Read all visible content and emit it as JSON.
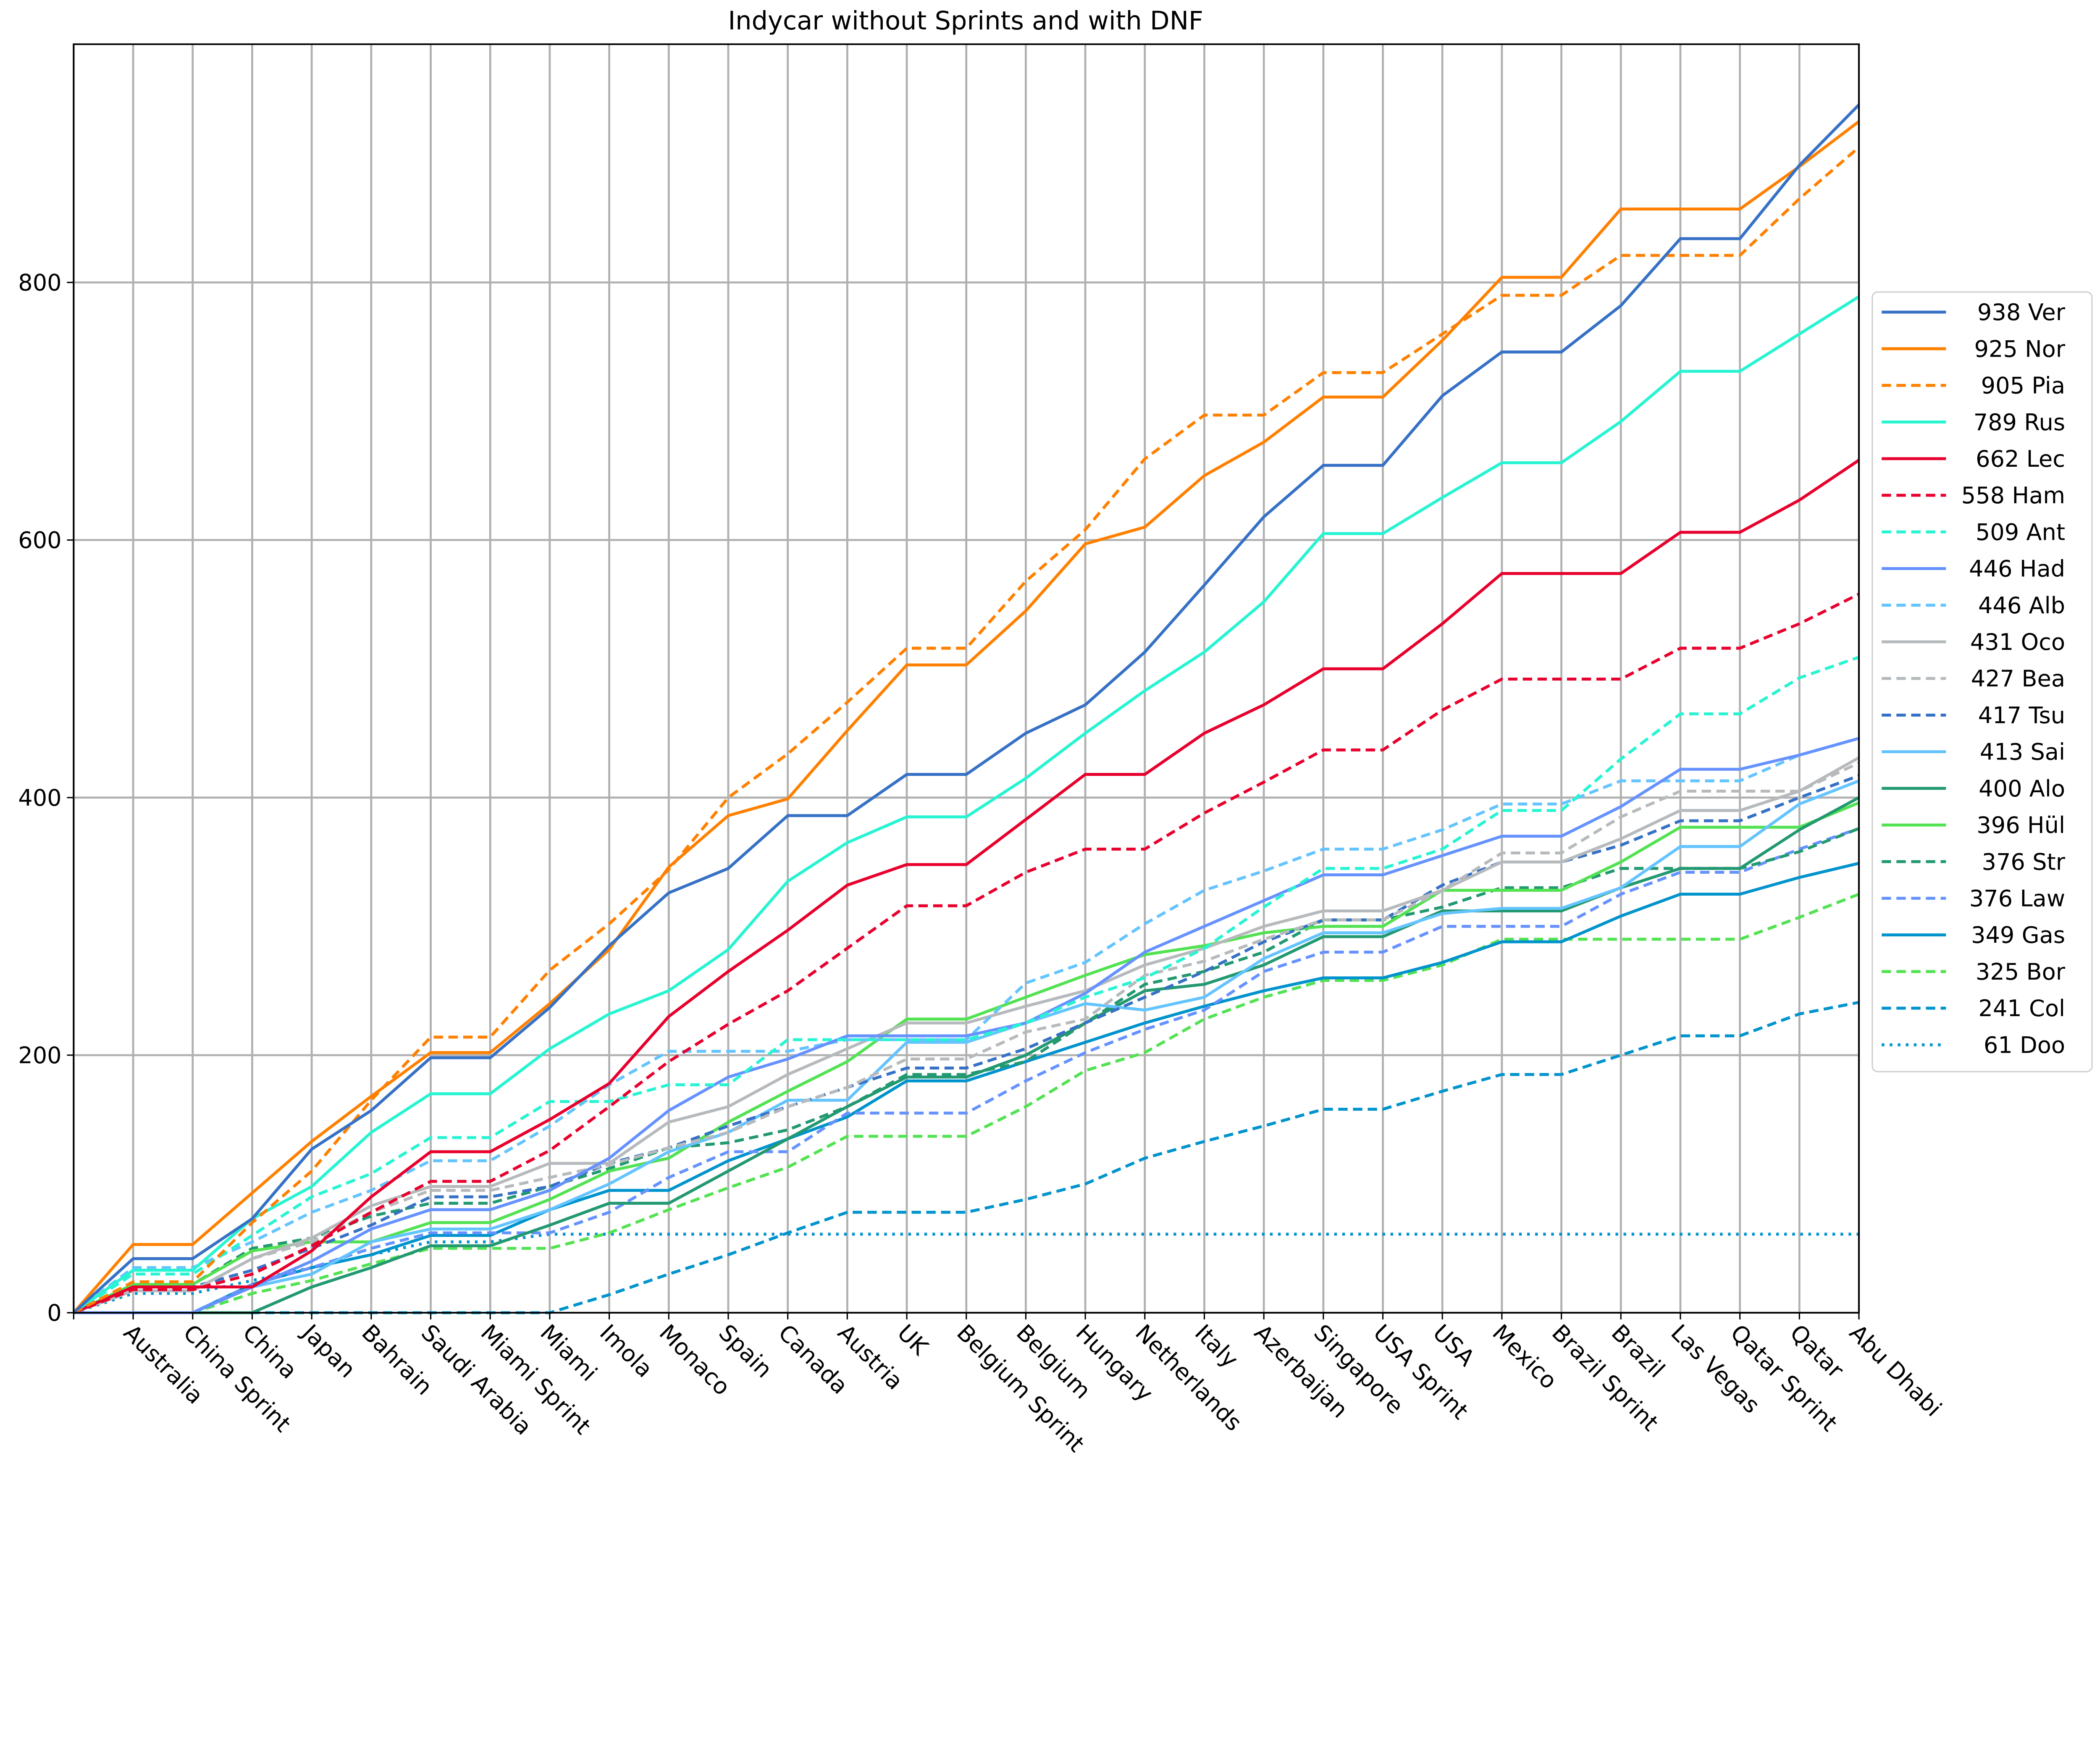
{
  "chart_data": {
    "type": "line",
    "title": "Indycar without Sprints and with DNF",
    "xlabel": "",
    "ylabel": "",
    "ylim": [
      0,
      985
    ],
    "xlim": [
      0,
      30
    ],
    "grid": true,
    "legend_position": "right",
    "yticks": [
      0,
      200,
      400,
      600,
      800
    ],
    "categories": [
      "",
      "Australia",
      "China Sprint",
      "China",
      "Japan",
      "Bahrain",
      "Saudi Arabia",
      "Miami Sprint",
      "Miami",
      "Imola",
      "Monaco",
      "Spain",
      "Canada",
      "Austria",
      "UK",
      "Belgium Sprint",
      "Belgium",
      "Hungary",
      "Netherlands",
      "Italy",
      "Azerbaijan",
      "Singapore",
      "USA Sprint",
      "USA",
      "Mexico",
      "Brazil Sprint",
      "Brazil",
      "Las Vegas",
      "Qatar Sprint",
      "Qatar",
      "Abu Dhabi"
    ],
    "series": [
      {
        "name": "Ver",
        "total": "938",
        "color": "#3671c6",
        "style": "solid",
        "values": [
          0,
          42,
          42,
          73,
          127,
          157,
          198,
          198,
          237,
          285,
          326,
          345,
          386,
          386,
          418,
          418,
          450,
          472,
          513,
          565,
          618,
          658,
          658,
          712,
          746,
          746,
          782,
          834,
          834,
          891,
          938
        ]
      },
      {
        "name": "Nor",
        "total": "925",
        "color": "#ff8000",
        "style": "solid",
        "values": [
          0,
          53,
          53,
          93,
          133,
          168,
          202,
          202,
          240,
          282,
          346,
          386,
          399,
          452,
          503,
          503,
          545,
          597,
          610,
          650,
          676,
          711,
          711,
          755,
          804,
          804,
          857,
          857,
          857,
          890,
          925
        ]
      },
      {
        "name": "Pia",
        "total": "905",
        "color": "#ff8000",
        "style": "dashed",
        "values": [
          0,
          24,
          24,
          70,
          110,
          165,
          214,
          214,
          266,
          302,
          344,
          400,
          434,
          474,
          516,
          516,
          568,
          608,
          663,
          697,
          697,
          730,
          730,
          760,
          790,
          790,
          821,
          821,
          821,
          865,
          905
        ]
      },
      {
        "name": "Rus",
        "total": "789",
        "color": "#27f4d2",
        "style": "solid",
        "values": [
          0,
          33,
          33,
          73,
          98,
          140,
          170,
          170,
          205,
          232,
          250,
          282,
          335,
          365,
          385,
          385,
          415,
          450,
          483,
          513,
          552,
          605,
          605,
          633,
          660,
          660,
          692,
          731,
          731,
          760,
          789
        ]
      },
      {
        "name": "Lec",
        "total": "662",
        "color": "#e8002d",
        "style": "solid",
        "values": [
          0,
          20,
          20,
          20,
          48,
          90,
          125,
          125,
          150,
          178,
          230,
          265,
          297,
          332,
          348,
          348,
          383,
          418,
          418,
          450,
          472,
          500,
          500,
          535,
          574,
          574,
          574,
          606,
          606,
          631,
          662
        ]
      },
      {
        "name": "Ham",
        "total": "558",
        "color": "#e8002d",
        "style": "dashed",
        "values": [
          0,
          18,
          18,
          30,
          52,
          78,
          102,
          102,
          126,
          160,
          195,
          224,
          250,
          283,
          316,
          316,
          342,
          360,
          360,
          388,
          412,
          437,
          437,
          468,
          492,
          492,
          492,
          516,
          516,
          535,
          558
        ]
      },
      {
        "name": "Ant",
        "total": "509",
        "color": "#27f4d2",
        "style": "dashed",
        "values": [
          0,
          30,
          30,
          60,
          90,
          108,
          136,
          136,
          164,
          164,
          177,
          177,
          212,
          212,
          212,
          212,
          225,
          245,
          260,
          283,
          315,
          345,
          345,
          360,
          390,
          390,
          430,
          465,
          465,
          493,
          509
        ]
      },
      {
        "name": "Had",
        "total": "446",
        "color": "#6692ff",
        "style": "solid",
        "values": [
          0,
          0,
          0,
          20,
          40,
          65,
          80,
          80,
          95,
          120,
          157,
          183,
          197,
          215,
          215,
          215,
          225,
          248,
          280,
          300,
          320,
          340,
          340,
          355,
          370,
          370,
          393,
          422,
          422,
          433,
          446
        ]
      },
      {
        "name": "Alb",
        "total": "446",
        "color": "#64c4ff",
        "style": "dashed",
        "values": [
          0,
          35,
          35,
          55,
          78,
          95,
          118,
          118,
          145,
          177,
          203,
          203,
          203,
          212,
          212,
          212,
          256,
          272,
          302,
          328,
          343,
          360,
          360,
          375,
          395,
          395,
          413,
          413,
          413,
          433,
          446
        ]
      },
      {
        "name": "Oco",
        "total": "431",
        "color": "#b6babd",
        "style": "solid",
        "values": [
          0,
          17,
          17,
          42,
          58,
          83,
          98,
          98,
          116,
          116,
          148,
          160,
          185,
          205,
          225,
          225,
          238,
          250,
          270,
          283,
          300,
          312,
          312,
          328,
          350,
          350,
          368,
          390,
          390,
          405,
          431
        ]
      },
      {
        "name": "Bea",
        "total": "427",
        "color": "#b6babd",
        "style": "dashed",
        "values": [
          0,
          17,
          17,
          42,
          55,
          78,
          95,
          95,
          105,
          115,
          128,
          140,
          160,
          175,
          197,
          197,
          218,
          228,
          262,
          273,
          290,
          305,
          305,
          328,
          357,
          357,
          385,
          405,
          405,
          405,
          427
        ]
      },
      {
        "name": "Tsu",
        "total": "417",
        "color": "#3671c6",
        "style": "dashed",
        "values": [
          0,
          20,
          20,
          33,
          50,
          68,
          90,
          90,
          98,
          116,
          128,
          145,
          160,
          175,
          190,
          190,
          205,
          225,
          245,
          265,
          288,
          305,
          305,
          332,
          350,
          350,
          363,
          382,
          382,
          400,
          417
        ]
      },
      {
        "name": "Sai",
        "total": "413",
        "color": "#64c4ff",
        "style": "solid",
        "values": [
          0,
          0,
          0,
          20,
          30,
          55,
          65,
          65,
          80,
          100,
          125,
          140,
          165,
          165,
          210,
          210,
          225,
          240,
          235,
          245,
          275,
          295,
          295,
          310,
          314,
          314,
          330,
          362,
          362,
          395,
          413
        ]
      },
      {
        "name": "Alo",
        "total": "400",
        "color": "#229971",
        "style": "solid",
        "values": [
          0,
          0,
          0,
          0,
          20,
          35,
          52,
          52,
          68,
          85,
          85,
          110,
          135,
          160,
          183,
          183,
          200,
          225,
          250,
          255,
          270,
          292,
          292,
          312,
          312,
          312,
          330,
          345,
          345,
          375,
          400
        ]
      },
      {
        "name": "Hül",
        "total": "396",
        "color": "#52e252",
        "style": "solid",
        "values": [
          0,
          22,
          22,
          48,
          55,
          55,
          70,
          70,
          88,
          110,
          120,
          148,
          172,
          195,
          228,
          228,
          245,
          262,
          278,
          285,
          295,
          300,
          300,
          328,
          328,
          328,
          350,
          377,
          377,
          377,
          396
        ]
      },
      {
        "name": "Str",
        "total": "376",
        "color": "#229971",
        "style": "dashed",
        "values": [
          0,
          22,
          22,
          50,
          58,
          75,
          85,
          85,
          98,
          112,
          128,
          132,
          142,
          160,
          185,
          185,
          195,
          225,
          255,
          265,
          280,
          305,
          305,
          315,
          330,
          330,
          345,
          345,
          345,
          358,
          376
        ]
      },
      {
        "name": "Law",
        "total": "376",
        "color": "#6692ff",
        "style": "dashed",
        "values": [
          0,
          0,
          0,
          22,
          35,
          50,
          62,
          62,
          62,
          78,
          105,
          125,
          125,
          155,
          155,
          155,
          180,
          202,
          220,
          235,
          265,
          280,
          280,
          300,
          300,
          300,
          325,
          342,
          342,
          360,
          376
        ]
      },
      {
        "name": "Gas",
        "total": "349",
        "color": "#0093cc",
        "style": "solid",
        "values": [
          0,
          0,
          0,
          22,
          35,
          45,
          60,
          60,
          80,
          95,
          95,
          118,
          135,
          152,
          180,
          180,
          195,
          210,
          225,
          238,
          250,
          260,
          260,
          272,
          288,
          288,
          308,
          325,
          325,
          338,
          349
        ]
      },
      {
        "name": "Bor",
        "total": "325",
        "color": "#52e252",
        "style": "dashed",
        "values": [
          0,
          0,
          0,
          15,
          25,
          38,
          50,
          50,
          50,
          62,
          80,
          97,
          113,
          137,
          137,
          137,
          160,
          188,
          202,
          228,
          245,
          258,
          258,
          270,
          290,
          290,
          290,
          290,
          290,
          307,
          325
        ]
      },
      {
        "name": "Col",
        "total": "241",
        "color": "#0093cc",
        "style": "dashed",
        "values": [
          0,
          0,
          0,
          0,
          0,
          0,
          0,
          0,
          0,
          14,
          30,
          45,
          62,
          78,
          78,
          78,
          88,
          100,
          120,
          133,
          145,
          158,
          158,
          172,
          185,
          185,
          200,
          215,
          215,
          232,
          241
        ]
      },
      {
        "name": "Doo",
        "total": "61",
        "color": "#0093cc",
        "style": "dotted",
        "values": [
          0,
          15,
          15,
          25,
          35,
          45,
          55,
          55,
          61,
          61,
          61,
          61,
          61,
          61,
          61,
          61,
          61,
          61,
          61,
          61,
          61,
          61,
          61,
          61,
          61,
          61,
          61,
          61,
          61,
          61,
          61
        ]
      }
    ]
  }
}
